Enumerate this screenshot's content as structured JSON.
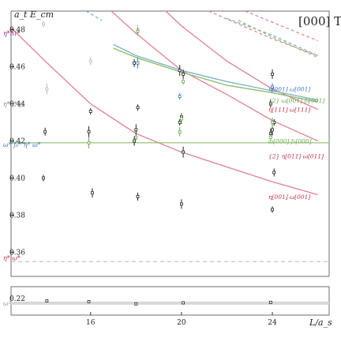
{
  "chart_data": {
    "type": "scatter",
    "title": "[000] T₁⁻",
    "ylabel": "a_t E_cm",
    "xlabel": "L/a_s",
    "xlim": [
      12.5,
      26.5
    ],
    "ylim_upper": [
      0.347,
      0.49
    ],
    "ylim_lower": [
      0.209,
      0.228
    ],
    "x_ticks": [
      "16",
      "20",
      "24"
    ],
    "y_ticks_upper": [
      "0.36",
      "0.38",
      "0.40",
      "0.42",
      "0.44",
      "0.46",
      "0.48"
    ],
    "y_ticks_lower": [
      "0.22"
    ],
    "left_labels": [
      {
        "text": "η*h₁*",
        "y": 0.478,
        "color": "#8a1a8a"
      },
      {
        "text": "η*η*η†",
        "y": 0.44,
        "color": "#888888"
      },
      {
        "text": "ω* f₀* η* ω*",
        "y": 0.418,
        "color": "#3a7ab8"
      },
      {
        "text": "η* ω*",
        "y": 0.357,
        "color": "#c0304a"
      },
      {
        "text": "ω¹",
        "y": 0.217,
        "color": "#999999"
      }
    ],
    "curve_labels": [
      {
        "text": "η[001] ω[001]",
        "y": 0.448,
        "color": "#3a7ab8"
      },
      {
        "text": "{2} ω[001] f₀[001]",
        "y": 0.442,
        "color": "#6aa84f"
      },
      {
        "text": "η[111] ω[111]",
        "y": 0.437,
        "color": "#c0304a"
      },
      {
        "text": "ω[000] f₀[000]",
        "y": 0.42,
        "color": "#6aa84f"
      },
      {
        "text": "{2} η[011] ω[011]",
        "y": 0.412,
        "color": "#c0304a"
      },
      {
        "text": "η[001] ω[001]",
        "y": 0.39,
        "color": "#c0304a"
      }
    ],
    "series": [
      {
        "color": "#222222",
        "x": 14,
        "y": [
          0.4,
          0.425
        ]
      },
      {
        "color": "#222222",
        "x": 16,
        "y": [
          0.392,
          0.425,
          0.436
        ]
      },
      {
        "color": "#222222",
        "x": 18,
        "y": [
          0.39,
          0.42,
          0.426,
          0.438,
          0.462
        ]
      },
      {
        "color": "#222222",
        "x": 20,
        "y": [
          0.386,
          0.414,
          0.43,
          0.433,
          0.456,
          0.458
        ]
      },
      {
        "color": "#222222",
        "x": 24,
        "y": [
          0.383,
          0.403,
          0.424,
          0.426,
          0.43,
          0.44,
          0.456
        ]
      },
      {
        "color": "#bbbbbb",
        "x": 14,
        "y": [
          0.448,
          0.483
        ]
      },
      {
        "color": "#bbbbbb",
        "x": 16,
        "y": [
          0.463
        ]
      },
      {
        "color": "#bbbbbb",
        "x": 18,
        "y": [
          0.48
        ]
      },
      {
        "color": "#6aa84f",
        "x": 16,
        "y": [
          0.419
        ]
      },
      {
        "color": "#6aa84f",
        "x": 18,
        "y": [
          0.422,
          0.479
        ]
      },
      {
        "color": "#6aa84f",
        "x": 20,
        "y": [
          0.425,
          0.432,
          0.452
        ]
      },
      {
        "color": "#6aa84f",
        "x": 24,
        "y": [
          0.422,
          0.43
        ]
      },
      {
        "color": "#3a7ab8",
        "x": 18,
        "y": [
          0.462
        ]
      },
      {
        "color": "#3a7ab8",
        "x": 20,
        "y": [
          0.444
        ]
      },
      {
        "color": "#3a7ab8",
        "x": 24,
        "y": [
          0.449
        ]
      },
      {
        "color": "#222222",
        "x": 14,
        "lower": true,
        "y": [
          0.2185
        ]
      },
      {
        "color": "#222222",
        "x": 16,
        "lower": true,
        "y": [
          0.218
        ]
      },
      {
        "color": "#222222",
        "x": 18,
        "lower": true,
        "y": [
          0.2165
        ]
      },
      {
        "color": "#222222",
        "x": 20,
        "lower": true,
        "y": [
          0.2172
        ]
      },
      {
        "color": "#222222",
        "x": 24,
        "lower": true,
        "y": [
          0.2175
        ]
      }
    ],
    "errors": [
      0.003,
      0.003,
      0.002,
      0.003,
      0.004,
      0.004,
      0.003,
      0.003
    ],
    "threshold_line": 0.419,
    "gap_line": 0.355,
    "lower_band": 0.217,
    "curves": [
      {
        "color": "#e08a98",
        "points": [
          [
            12.5,
            0.481
          ],
          [
            14,
            0.463
          ],
          [
            16,
            0.44
          ],
          [
            18,
            0.424
          ],
          [
            20,
            0.414
          ],
          [
            22,
            0.406
          ],
          [
            24,
            0.398
          ],
          [
            26,
            0.391
          ]
        ]
      },
      {
        "color": "#e08a98",
        "points": [
          [
            14,
            0.53
          ],
          [
            16,
            0.5
          ],
          [
            18,
            0.478
          ],
          [
            20,
            0.458
          ],
          [
            22,
            0.445
          ],
          [
            24,
            0.431
          ],
          [
            26,
            0.42
          ]
        ]
      },
      {
        "color": "#e08a98",
        "points": [
          [
            16,
            0.53
          ],
          [
            18,
            0.505
          ],
          [
            20,
            0.482
          ],
          [
            22,
            0.463
          ],
          [
            24,
            0.448
          ],
          [
            26,
            0.437
          ]
        ]
      },
      {
        "color": "#7fb3c8",
        "points": [
          [
            17,
            0.472
          ],
          [
            18,
            0.466
          ],
          [
            20,
            0.458
          ],
          [
            22,
            0.452
          ],
          [
            24,
            0.447
          ],
          [
            26,
            0.442
          ]
        ]
      },
      {
        "color": "#8cbf6a",
        "points": [
          [
            17,
            0.47
          ],
          [
            18,
            0.465
          ],
          [
            20,
            0.457
          ],
          [
            22,
            0.45
          ],
          [
            24,
            0.446
          ],
          [
            26,
            0.441
          ]
        ]
      }
    ],
    "dashed_curves": [
      {
        "color": "#e08a98",
        "points": [
          [
            21.2,
            0.49
          ],
          [
            22.5,
            0.483
          ],
          [
            24,
            0.475
          ],
          [
            26,
            0.466
          ]
        ]
      },
      {
        "color": "#e08a98",
        "points": [
          [
            22.8,
            0.49
          ],
          [
            24,
            0.484
          ],
          [
            26,
            0.474
          ]
        ]
      },
      {
        "color": "#7fb3c8",
        "points": [
          [
            15.8,
            0.49
          ],
          [
            16.5,
            0.485
          ]
        ]
      },
      {
        "color": "#7fb3c8",
        "points": [
          [
            22,
            0.486
          ],
          [
            24,
            0.477
          ],
          [
            26,
            0.466
          ]
        ]
      },
      {
        "color": "#8cbf6a",
        "points": [
          [
            22.5,
            0.485
          ],
          [
            24,
            0.476
          ],
          [
            26,
            0.465
          ]
        ]
      }
    ]
  }
}
